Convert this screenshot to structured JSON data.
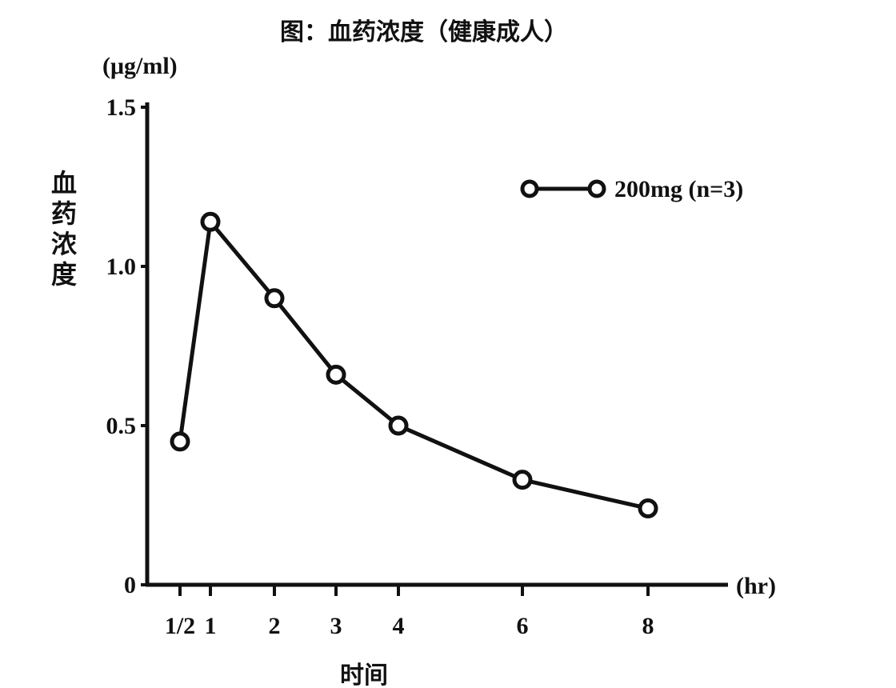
{
  "chart_data": {
    "type": "line",
    "title": "图：血药浓度（健康成人）",
    "ylabel": "血药浓度",
    "y_unit": "(μg/ml)",
    "xlabel": "时间",
    "x_unit": "(hr)",
    "ylim": [
      0,
      1.5
    ],
    "y_ticks": [
      0,
      0.5,
      1.0,
      1.5
    ],
    "y_tick_labels": [
      "0",
      "0.5",
      "1.0",
      "1.5"
    ],
    "x_ticks": [
      0.5,
      1,
      2,
      3,
      4,
      6,
      8
    ],
    "x_tick_labels": [
      "1/2",
      "1",
      "2",
      "3",
      "4",
      "6",
      "8"
    ],
    "grid": false,
    "legend_position": "top-right",
    "series": [
      {
        "name": "200mg (n=3)",
        "x": [
          0.5,
          1,
          2,
          3,
          4,
          6,
          8
        ],
        "y": [
          0.45,
          1.14,
          0.9,
          0.66,
          0.5,
          0.33,
          0.24
        ]
      }
    ]
  }
}
